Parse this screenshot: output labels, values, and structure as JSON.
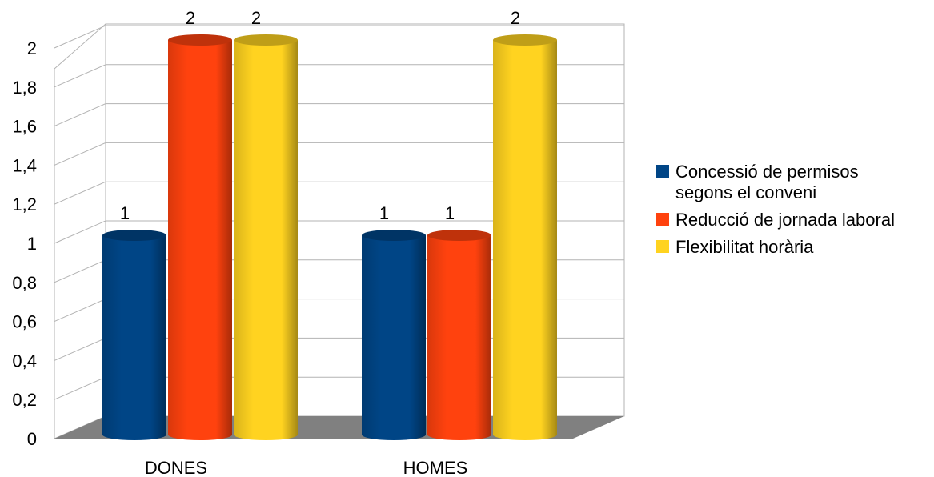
{
  "chart_data": {
    "type": "bar",
    "title": "",
    "categories": [
      "DONES",
      "HOMES"
    ],
    "series": [
      {
        "name": "Concessió de permisos segons el conveni",
        "legend_lines": [
          "Concessió de permisos",
          "segons el conveni"
        ],
        "values": [
          1,
          1
        ],
        "color": "#004586"
      },
      {
        "name": "Reducció de jornada laboral",
        "legend_lines": [
          "Reducció de jornada laboral"
        ],
        "values": [
          2,
          1
        ],
        "color": "#ff420e"
      },
      {
        "name": "Flexibilitat horària",
        "legend_lines": [
          "Flexibilitat horària"
        ],
        "values": [
          2,
          2
        ],
        "color": "#ffd320"
      }
    ],
    "ylim": [
      0,
      2
    ],
    "yticks": [
      "0",
      "0,2",
      "0,4",
      "0,6",
      "0,8",
      "1",
      "1,2",
      "1,4",
      "1,6",
      "1,8",
      "2"
    ],
    "grid": true,
    "legend_position": "right",
    "data_labels": true,
    "style": "3d-cylinder"
  }
}
